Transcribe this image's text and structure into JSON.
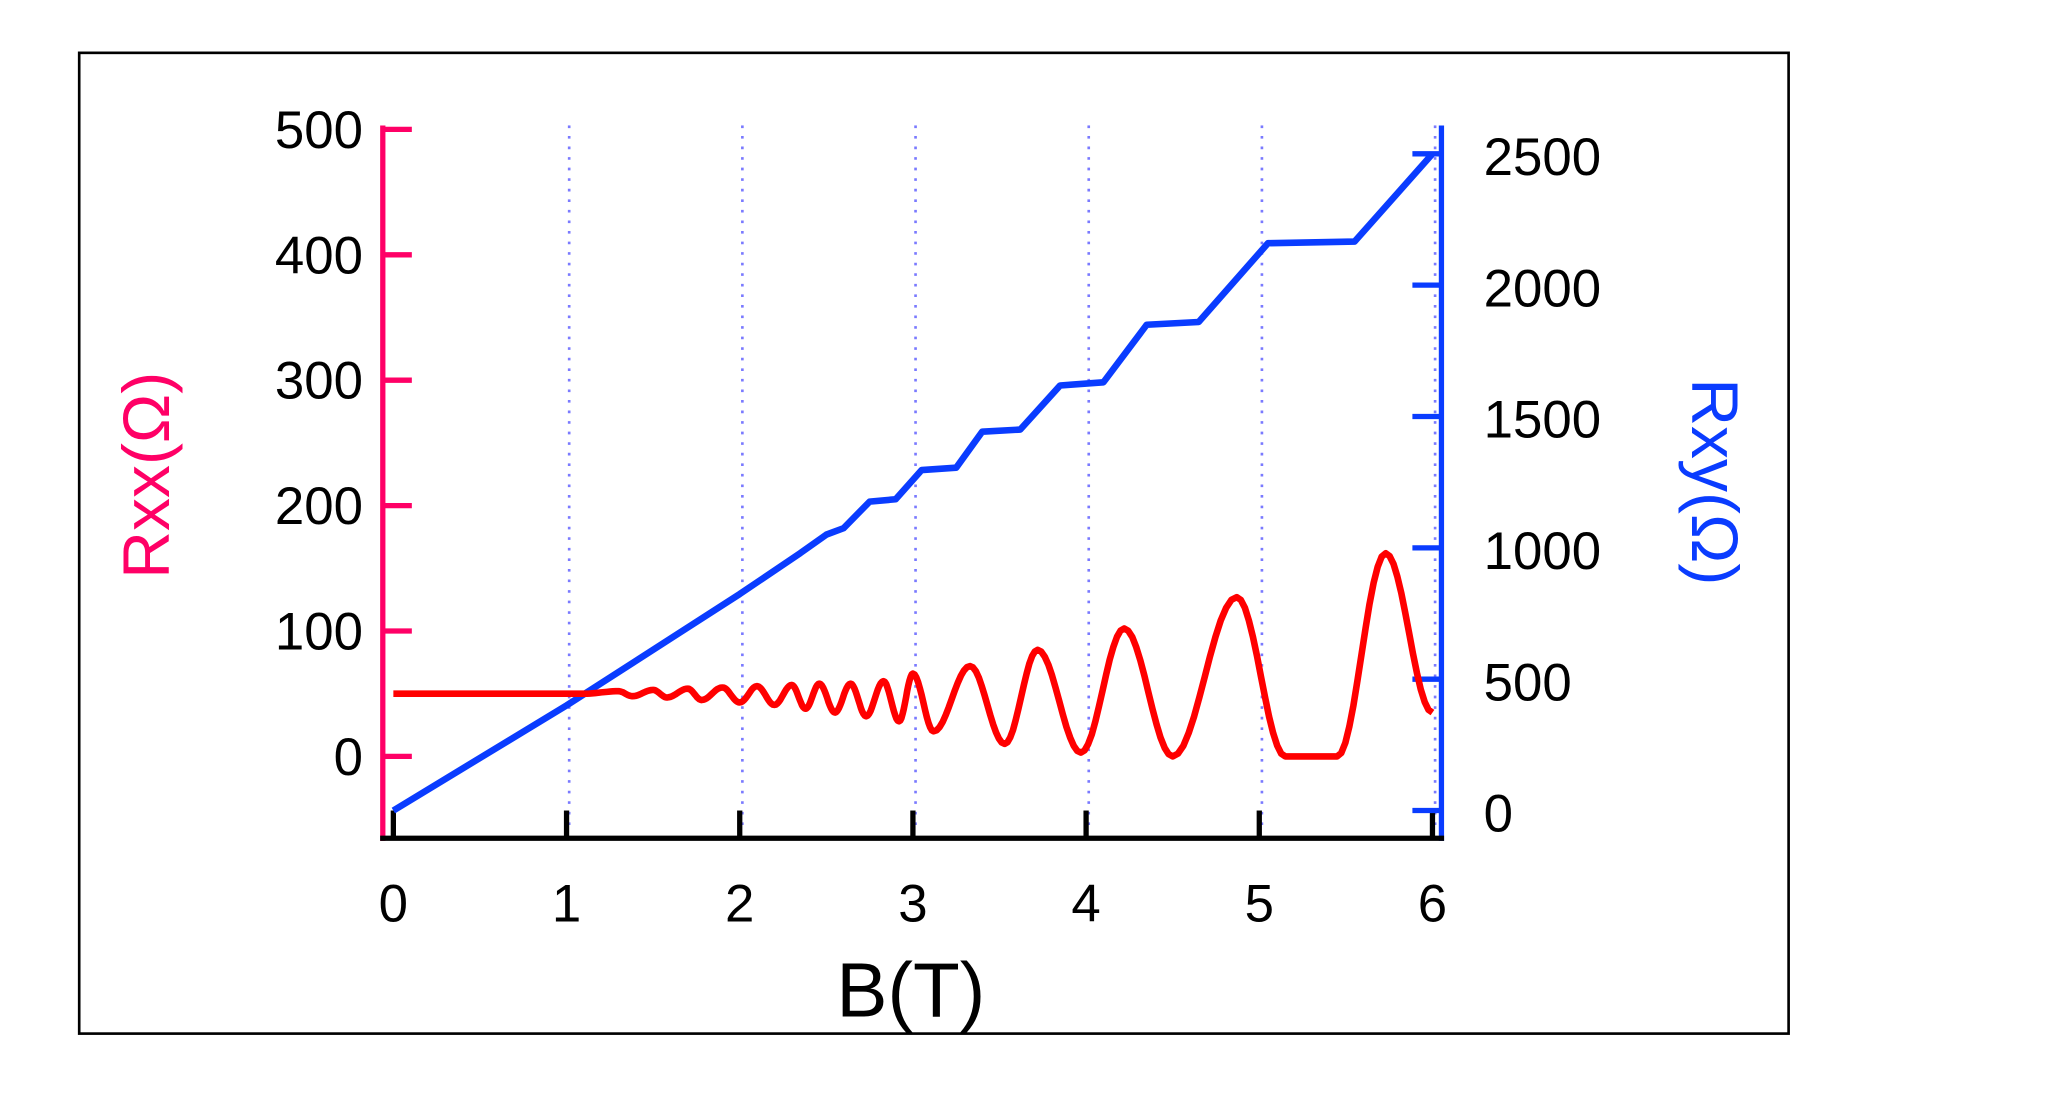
{
  "chart_data": {
    "type": "line",
    "xlabel": "B(T)",
    "ylabel_left": "Rxx(Ω)",
    "ylabel_right": "Rxy(Ω)",
    "xlim": [
      0,
      6
    ],
    "ylim_left": [
      -65,
      500
    ],
    "ylim_right": [
      -100,
      2600
    ],
    "x_ticks": [
      "0",
      "1",
      "2",
      "3",
      "4",
      "5",
      "6"
    ],
    "y_left_ticks": [
      "0",
      "100",
      "200",
      "300",
      "400",
      "500"
    ],
    "y_right_ticks": [
      "0",
      "500",
      "1000",
      "1500",
      "2000",
      "2500"
    ],
    "grid": "vertical dotted",
    "colors": {
      "rxx": "#ff0000",
      "rxy": "#0a3cff",
      "left_axis": "#ff0066",
      "right_axis": "#0a3cff",
      "grid": "#7a7aff"
    },
    "series": [
      {
        "name": "Rxx",
        "axis": "left",
        "points": [
          [
            0,
            50
          ],
          [
            1.1,
            50
          ],
          [
            1.3,
            52
          ],
          [
            1.38,
            48
          ],
          [
            1.5,
            53
          ],
          [
            1.58,
            47
          ],
          [
            1.7,
            54
          ],
          [
            1.78,
            45
          ],
          [
            1.9,
            55
          ],
          [
            2.0,
            43
          ],
          [
            2.1,
            56
          ],
          [
            2.2,
            41
          ],
          [
            2.3,
            57
          ],
          [
            2.38,
            38
          ],
          [
            2.46,
            58
          ],
          [
            2.55,
            35
          ],
          [
            2.64,
            58
          ],
          [
            2.73,
            32
          ],
          [
            2.83,
            60
          ],
          [
            2.92,
            28
          ],
          [
            3.0,
            66
          ],
          [
            3.12,
            20
          ],
          [
            3.33,
            72
          ],
          [
            3.53,
            10
          ],
          [
            3.72,
            85
          ],
          [
            3.97,
            3
          ],
          [
            4.22,
            102
          ],
          [
            4.5,
            0
          ],
          [
            4.87,
            127
          ],
          [
            5.15,
            0
          ],
          [
            5.45,
            0
          ],
          [
            5.73,
            162
          ],
          [
            6.0,
            35
          ]
        ]
      },
      {
        "name": "Rxy",
        "axis": "right",
        "points": [
          [
            0,
            0
          ],
          [
            1,
            400
          ],
          [
            2,
            824
          ],
          [
            2.35,
            980
          ],
          [
            2.5,
            1050
          ],
          [
            2.6,
            1075
          ],
          [
            2.75,
            1176
          ],
          [
            2.9,
            1185
          ],
          [
            3.05,
            1296
          ],
          [
            3.25,
            1305
          ],
          [
            3.4,
            1442
          ],
          [
            3.62,
            1450
          ],
          [
            3.85,
            1618
          ],
          [
            4.1,
            1630
          ],
          [
            4.35,
            1849
          ],
          [
            4.65,
            1860
          ],
          [
            5.05,
            2160
          ],
          [
            5.55,
            2166
          ],
          [
            6.0,
            2500
          ]
        ]
      }
    ]
  }
}
